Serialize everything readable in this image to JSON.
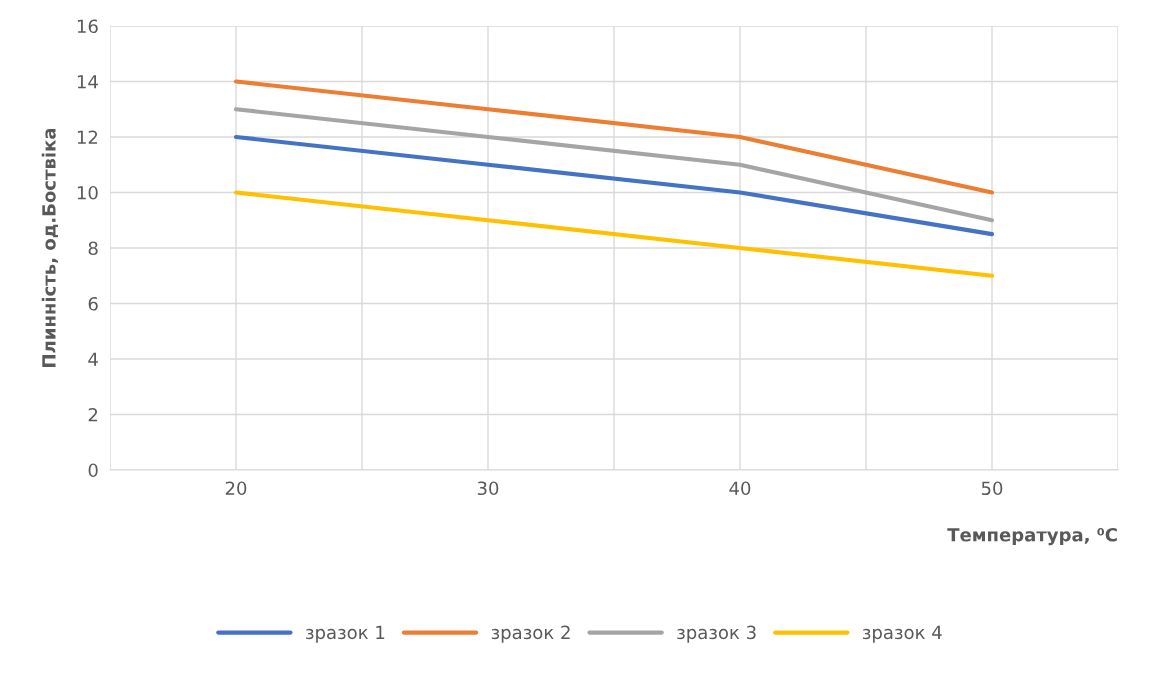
{
  "chart_data": {
    "type": "line",
    "xlabel": "Температура, ⁰C",
    "ylabel": "Плинність, од.Боствіка",
    "categories": [
      "20",
      "30",
      "40",
      "50"
    ],
    "series": [
      {
        "name": "зразок 1",
        "color": "#4472c4",
        "values": [
          12,
          11,
          10,
          8.5
        ]
      },
      {
        "name": "зразок 2",
        "color": "#ed7d31",
        "values": [
          14,
          13,
          12,
          10
        ]
      },
      {
        "name": "зразок 3",
        "color": "#a5a5a5",
        "values": [
          13,
          12,
          11,
          9
        ]
      },
      {
        "name": "зразок 4",
        "color": "#ffc000",
        "values": [
          10,
          9,
          8,
          7
        ]
      }
    ],
    "ylim": [
      0,
      16
    ],
    "yticks": [
      0,
      2,
      4,
      6,
      8,
      10,
      12,
      14,
      16
    ],
    "grid": true,
    "legend": "bottom",
    "marker": "none",
    "line_style": "solid"
  }
}
